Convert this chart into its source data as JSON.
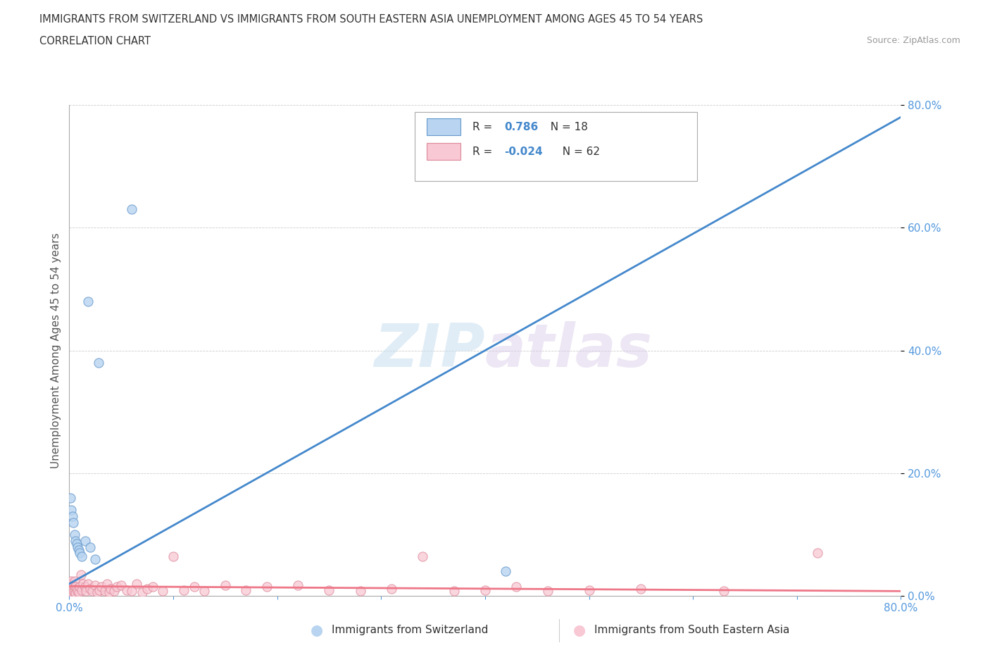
{
  "title_line1": "IMMIGRANTS FROM SWITZERLAND VS IMMIGRANTS FROM SOUTH EASTERN ASIA UNEMPLOYMENT AMONG AGES 45 TO 54 YEARS",
  "title_line2": "CORRELATION CHART",
  "source_text": "Source: ZipAtlas.com",
  "ylabel": "Unemployment Among Ages 45 to 54 years",
  "xlim": [
    0.0,
    0.8
  ],
  "ylim": [
    0.0,
    0.8
  ],
  "xticks": [
    0.0,
    0.1,
    0.2,
    0.3,
    0.4,
    0.5,
    0.6,
    0.7,
    0.8
  ],
  "yticks": [
    0.0,
    0.2,
    0.4,
    0.6,
    0.8
  ],
  "xtick_labels": [
    "0.0%",
    "",
    "",
    "",
    "",
    "",
    "",
    "",
    "80.0%"
  ],
  "ytick_labels": [
    "0.0%",
    "20.0%",
    "40.0%",
    "60.0%",
    "80.0%"
  ],
  "watermark_zip": "ZIP",
  "watermark_atlas": "atlas",
  "series1_label": "Immigrants from Switzerland",
  "series2_label": "Immigrants from South Eastern Asia",
  "r1": "0.786",
  "n1": "18",
  "r2": "-0.024",
  "n2": "62",
  "color_swiss_fill": "#b8d4f0",
  "color_swiss_edge": "#6699cc",
  "color_sea_fill": "#f8c8d4",
  "color_sea_edge": "#dd8899",
  "color_swiss_line": "#4488cc",
  "color_sea_line": "#ee7788",
  "tick_color": "#5599dd",
  "swiss_x": [
    0.001,
    0.002,
    0.003,
    0.004,
    0.005,
    0.006,
    0.007,
    0.008,
    0.009,
    0.01,
    0.012,
    0.015,
    0.018,
    0.02,
    0.025,
    0.028,
    0.06,
    0.42
  ],
  "swiss_y": [
    0.16,
    0.14,
    0.13,
    0.12,
    0.1,
    0.09,
    0.085,
    0.08,
    0.075,
    0.07,
    0.065,
    0.09,
    0.48,
    0.08,
    0.06,
    0.38,
    0.63,
    0.04
  ],
  "sea_x": [
    0.001,
    0.001,
    0.002,
    0.002,
    0.003,
    0.003,
    0.004,
    0.004,
    0.005,
    0.005,
    0.006,
    0.006,
    0.007,
    0.008,
    0.009,
    0.01,
    0.011,
    0.012,
    0.013,
    0.015,
    0.016,
    0.018,
    0.02,
    0.022,
    0.025,
    0.027,
    0.029,
    0.031,
    0.034,
    0.036,
    0.038,
    0.04,
    0.043,
    0.046,
    0.05,
    0.055,
    0.06,
    0.065,
    0.07,
    0.075,
    0.08,
    0.09,
    0.1,
    0.11,
    0.12,
    0.13,
    0.15,
    0.17,
    0.19,
    0.22,
    0.25,
    0.28,
    0.31,
    0.34,
    0.37,
    0.4,
    0.43,
    0.46,
    0.5,
    0.55,
    0.63,
    0.72
  ],
  "sea_y": [
    0.02,
    0.01,
    0.025,
    0.01,
    0.015,
    0.005,
    0.012,
    0.008,
    0.01,
    0.025,
    0.015,
    0.005,
    0.012,
    0.008,
    0.006,
    0.015,
    0.035,
    0.01,
    0.02,
    0.015,
    0.008,
    0.02,
    0.012,
    0.008,
    0.018,
    0.006,
    0.01,
    0.015,
    0.008,
    0.02,
    0.006,
    0.012,
    0.008,
    0.015,
    0.018,
    0.01,
    0.008,
    0.02,
    0.006,
    0.012,
    0.015,
    0.008,
    0.065,
    0.01,
    0.015,
    0.008,
    0.018,
    0.01,
    0.015,
    0.018,
    0.01,
    0.008,
    0.012,
    0.065,
    0.008,
    0.01,
    0.015,
    0.008,
    0.01,
    0.012,
    0.008,
    0.07
  ]
}
